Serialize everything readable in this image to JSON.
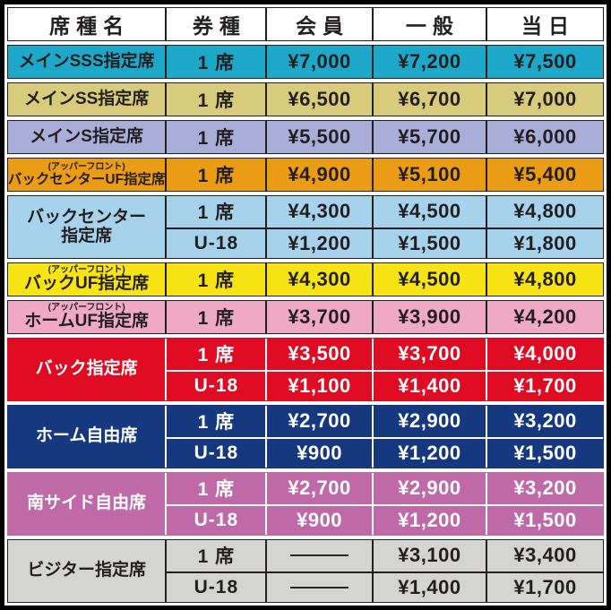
{
  "chart_data": {
    "type": "table",
    "columns": [
      "席種名",
      "券種",
      "会員",
      "一般",
      "当日"
    ],
    "rows": [
      [
        "メインSSS指定席",
        "1席",
        "¥7,000",
        "¥7,200",
        "¥7,500"
      ],
      [
        "メインSS指定席",
        "1席",
        "¥6,500",
        "¥6,700",
        "¥7,000"
      ],
      [
        "メインS指定席",
        "1席",
        "¥5,500",
        "¥5,700",
        "¥6,000"
      ],
      [
        "バックセンターUF指定席（アッパーフロント）",
        "1席",
        "¥4,900",
        "¥5,100",
        "¥5,400"
      ],
      [
        "バックセンター指定席",
        "1席",
        "¥4,300",
        "¥4,500",
        "¥4,800"
      ],
      [
        "バックセンター指定席",
        "U-18",
        "¥1,200",
        "¥1,500",
        "¥1,800"
      ],
      [
        "バックUF指定席（アッパーフロント）",
        "1席",
        "¥4,300",
        "¥4,500",
        "¥4,800"
      ],
      [
        "ホームUF指定席（アッパーフロント）",
        "1席",
        "¥3,700",
        "¥3,900",
        "¥4,200"
      ],
      [
        "バック指定席",
        "1席",
        "¥3,500",
        "¥3,700",
        "¥4,000"
      ],
      [
        "バック指定席",
        "U-18",
        "¥1,100",
        "¥1,400",
        "¥1,700"
      ],
      [
        "ホーム自由席",
        "1席",
        "¥2,700",
        "¥2,900",
        "¥3,200"
      ],
      [
        "ホーム自由席",
        "U-18",
        "¥900",
        "¥1,200",
        "¥1,500"
      ],
      [
        "南サイド自由席",
        "1席",
        "¥2,700",
        "¥2,900",
        "¥3,200"
      ],
      [
        "南サイド自由席",
        "U-18",
        "¥900",
        "¥1,200",
        "¥1,500"
      ],
      [
        "ビジター指定席",
        "1席",
        "—",
        "¥3,100",
        "¥3,400"
      ],
      [
        "ビジター指定席",
        "U-18",
        "—",
        "¥1,400",
        "¥1,700"
      ]
    ]
  },
  "table": {
    "header": {
      "seat_type": "席種名",
      "ticket_type": "券種",
      "member": "会員",
      "general": "一般",
      "same_day": "当日"
    },
    "groups": [
      {
        "id": "main-sss",
        "color": "#1da7c9",
        "dark": false,
        "name_lines": [
          "メインSSS指定席"
        ],
        "rows": [
          {
            "ticket": "1 席",
            "member": "¥7,000",
            "general": "¥7,200",
            "same_day": "¥7,500"
          }
        ]
      },
      {
        "id": "main-ss",
        "color": "#d9cb7c",
        "dark": false,
        "name_lines": [
          "メインSS指定席"
        ],
        "rows": [
          {
            "ticket": "1 席",
            "member": "¥6,500",
            "general": "¥6,700",
            "same_day": "¥7,000"
          }
        ]
      },
      {
        "id": "main-s",
        "color": "#a8aed8",
        "dark": false,
        "name_lines": [
          "メインS指定席"
        ],
        "rows": [
          {
            "ticket": "1 席",
            "member": "¥5,500",
            "general": "¥5,700",
            "same_day": "¥6,000"
          }
        ]
      },
      {
        "id": "back-center-uf",
        "color": "#eb9c15",
        "dark": false,
        "long_name": true,
        "name_sub": "(アッパーフロント)",
        "name_lines": [
          "バックセンターUF指定席"
        ],
        "rows": [
          {
            "ticket": "1 席",
            "member": "¥4,900",
            "general": "¥5,100",
            "same_day": "¥5,400"
          }
        ]
      },
      {
        "id": "back-center",
        "color": "#a6d2ec",
        "dark": false,
        "name_lines": [
          "バックセンター",
          "指定席"
        ],
        "rows": [
          {
            "ticket": "1 席",
            "member": "¥4,300",
            "general": "¥4,500",
            "same_day": "¥4,800"
          },
          {
            "ticket": "U-18",
            "member": "¥1,200",
            "general": "¥1,500",
            "same_day": "¥1,800"
          }
        ]
      },
      {
        "id": "back-uf",
        "color": "#f7e414",
        "dark": false,
        "name_sub": "(アッパーフロント)",
        "name_lines": [
          "バックUF指定席"
        ],
        "rows": [
          {
            "ticket": "1 席",
            "member": "¥4,300",
            "general": "¥4,500",
            "same_day": "¥4,800"
          }
        ]
      },
      {
        "id": "home-uf",
        "color": "#f0a9c5",
        "dark": false,
        "name_sub": "(アッパーフロント)",
        "name_lines": [
          "ホームUF指定席"
        ],
        "rows": [
          {
            "ticket": "1 席",
            "member": "¥3,700",
            "general": "¥3,900",
            "same_day": "¥4,200"
          }
        ]
      },
      {
        "id": "back",
        "color": "#df0b23",
        "dark": true,
        "name_lines": [
          "バック指定席"
        ],
        "rows": [
          {
            "ticket": "1 席",
            "member": "¥3,500",
            "general": "¥3,700",
            "same_day": "¥4,000"
          },
          {
            "ticket": "U-18",
            "member": "¥1,100",
            "general": "¥1,400",
            "same_day": "¥1,700"
          }
        ]
      },
      {
        "id": "home-free",
        "color": "#16387f",
        "dark": true,
        "name_lines": [
          "ホーム自由席"
        ],
        "rows": [
          {
            "ticket": "1 席",
            "member": "¥2,700",
            "general": "¥2,900",
            "same_day": "¥3,200"
          },
          {
            "ticket": "U-18",
            "member": "¥900",
            "general": "¥1,200",
            "same_day": "¥1,500"
          }
        ]
      },
      {
        "id": "south-side-free",
        "color": "#bf69a7",
        "dark": true,
        "name_lines": [
          "南サイド自由席"
        ],
        "rows": [
          {
            "ticket": "1 席",
            "member": "¥2,700",
            "general": "¥2,900",
            "same_day": "¥3,200"
          },
          {
            "ticket": "U-18",
            "member": "¥900",
            "general": "¥1,200",
            "same_day": "¥1,500"
          }
        ]
      },
      {
        "id": "visitor",
        "color": "#d4d4d2",
        "dark": false,
        "name_lines": [
          "ビジター指定席"
        ],
        "rows": [
          {
            "ticket": "1 席",
            "member": "———",
            "general": "¥3,100",
            "same_day": "¥3,400"
          },
          {
            "ticket": "U-18",
            "member": "———",
            "general": "¥1,400",
            "same_day": "¥1,700"
          }
        ]
      }
    ]
  },
  "colors": {
    "outer_border": "#000000",
    "line_dark": "#231f20",
    "line_light": "#ffffff",
    "text_dark": "#231f20",
    "text_light": "#ffffff"
  }
}
